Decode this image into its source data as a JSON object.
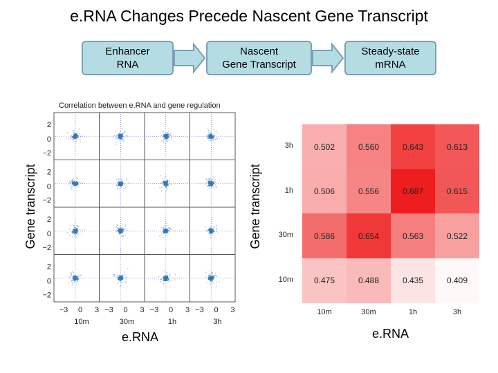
{
  "title": "e.RNA Changes Precede Nascent Gene Transcript",
  "flow": {
    "boxes": [
      "Enhancer\nRNA",
      "Nascent\nGene Transcript",
      "Steady-state\nmRNA"
    ]
  },
  "scatter": {
    "subtitle": "Correlation between e.RNA and gene regulation",
    "ylabel": "Gene transcript",
    "xlabel": "e.RNA",
    "y_ticks": [
      "2",
      "0",
      "−2"
    ],
    "x_ticks": [
      "−3",
      "0",
      "3"
    ],
    "col_labels": [
      "10m",
      "30m",
      "1h",
      "3h"
    ],
    "marker_color": "#3a78b5",
    "grid_color": "#8a78c9"
  },
  "chart_data": {
    "type": "heatmap",
    "xlabel": "e.RNA",
    "ylabel": "Gene transcript",
    "x_categories": [
      "10m",
      "30m",
      "1h",
      "3h"
    ],
    "y_categories": [
      "3h",
      "1h",
      "30m",
      "10m"
    ],
    "values": [
      [
        "0.502",
        "0.560",
        "0.643",
        "0.613"
      ],
      [
        "0.506",
        "0.556",
        "0.687",
        "0.615"
      ],
      [
        "0.586",
        "0.654",
        "0.563",
        "0.522"
      ],
      [
        "0.475",
        "0.488",
        "0.435",
        "0.409"
      ]
    ],
    "color_min": "#ffffff",
    "color_max": "#ee1c1c"
  }
}
